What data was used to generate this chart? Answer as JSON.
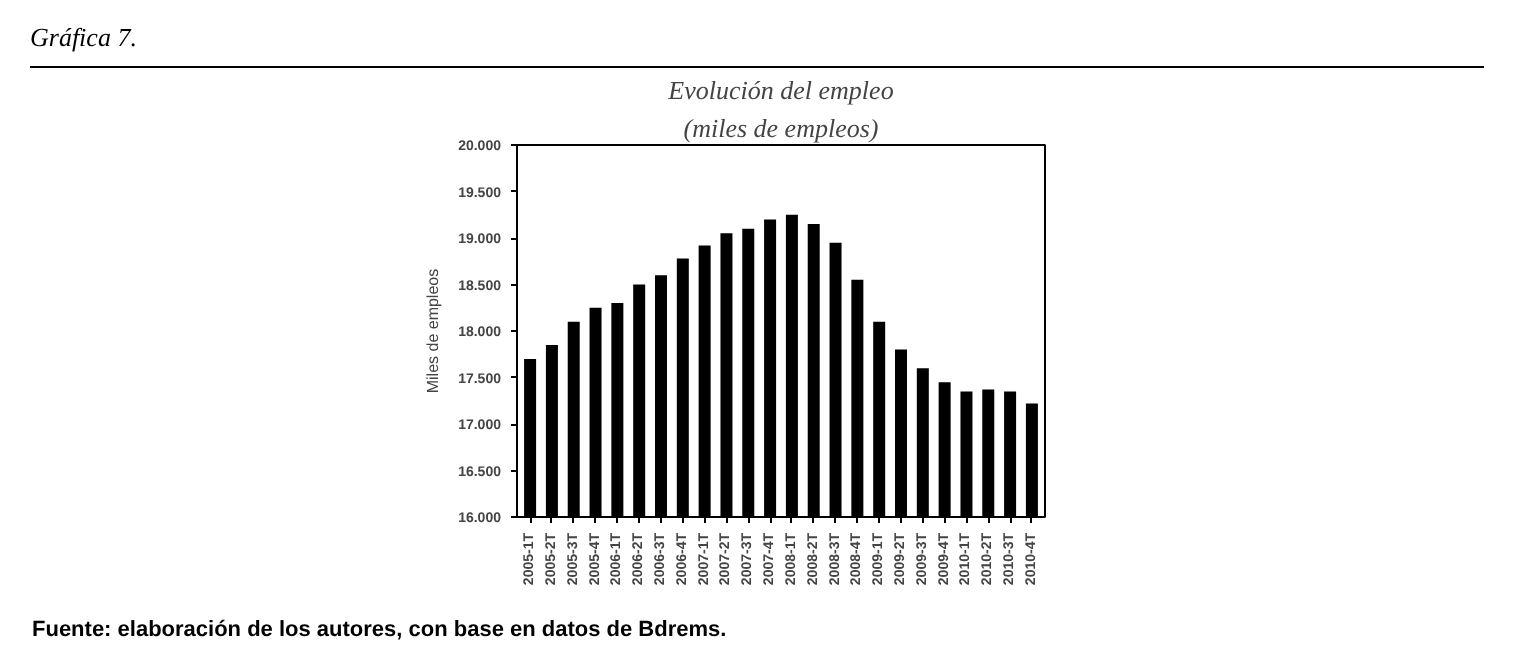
{
  "chart_data": {
    "type": "bar",
    "title": "Evolución del empleo",
    "subtitle": "(miles de empleos)",
    "ylabel": "Miles de empleos",
    "annotations": [
      "Gráfica 7.",
      "Fuente: elaboración de los autores, con base en datos de Bdrems."
    ],
    "categories": [
      "2005-1T",
      "2005-2T",
      "2005-3T",
      "2005-4T",
      "2006-1T",
      "2006-2T",
      "2006-3T",
      "2006-4T",
      "2007-1T",
      "2007-2T",
      "2007-3T",
      "2007-4T",
      "2008-1T",
      "2008-2T",
      "2008-3T",
      "2008-4T",
      "2009-1T",
      "2009-2T",
      "2009-3T",
      "2009-4T",
      "2010-1T",
      "2010-2T",
      "2010-3T",
      "2010-4T"
    ],
    "values": [
      17700,
      17850,
      18100,
      18250,
      18300,
      18500,
      18600,
      18780,
      18920,
      19050,
      19100,
      19200,
      19250,
      19150,
      18950,
      18550,
      18100,
      17800,
      17600,
      17450,
      17350,
      17370,
      17350,
      17220
    ],
    "color": "#000000",
    "ylim": [
      16000,
      20000
    ],
    "yticks": [
      {
        "value": 16000,
        "label": "16.000"
      },
      {
        "value": 16500,
        "label": "16.500"
      },
      {
        "value": 17000,
        "label": "17.000"
      },
      {
        "value": 17500,
        "label": "17.500"
      },
      {
        "value": 18000,
        "label": "18.000"
      },
      {
        "value": 18500,
        "label": "18.500"
      },
      {
        "value": 19000,
        "label": "19.000"
      },
      {
        "value": 19500,
        "label": "19.500"
      },
      {
        "value": 20000,
        "label": "20.000"
      }
    ],
    "grid": false,
    "legend": false
  }
}
